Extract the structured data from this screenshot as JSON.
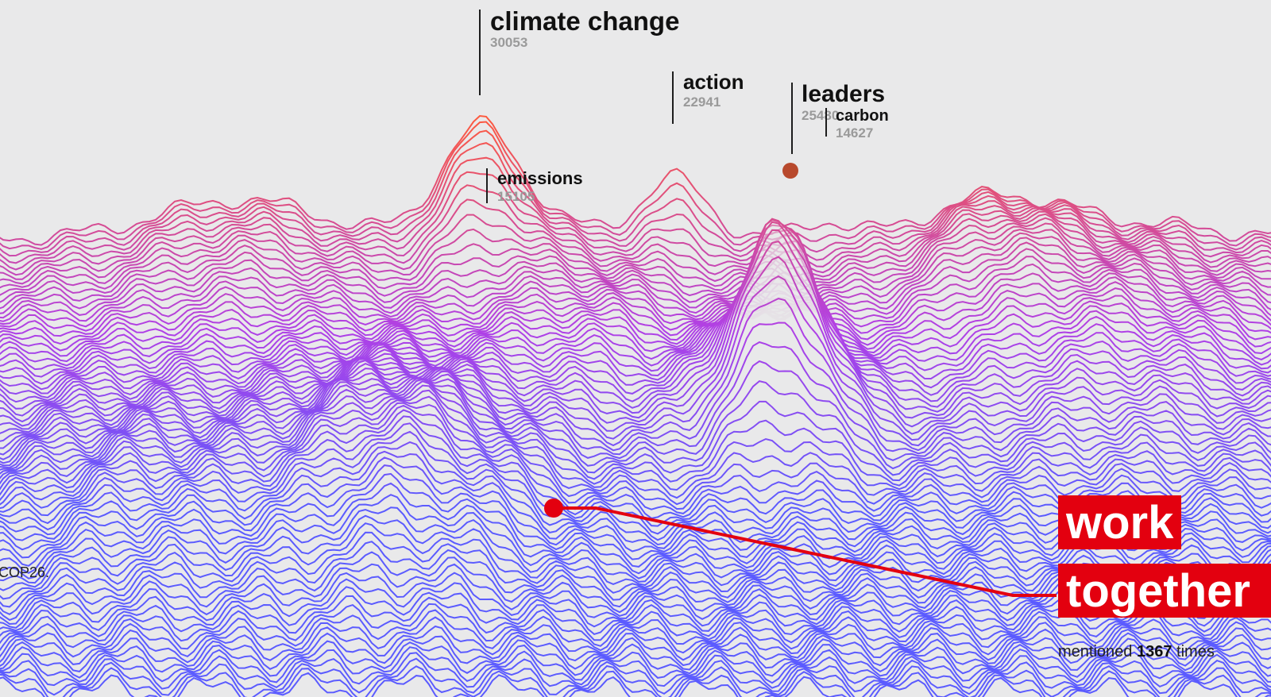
{
  "chart_data": {
    "type": "terrain",
    "peaks": [
      {
        "term": "climate change",
        "count": "30053"
      },
      {
        "term": "action",
        "count": "22941"
      },
      {
        "term": "leaders",
        "count": "25480"
      },
      {
        "term": "carbon",
        "count": "14627"
      },
      {
        "term": "emissions",
        "count": "15105"
      }
    ],
    "highlight": {
      "term_line1": "work",
      "term_line2": "together",
      "mention_prefix": "mentioned",
      "mention_count": "1367",
      "mention_suffix": "times",
      "color": "#e3000f"
    },
    "left_note_line1": "COP26.",
    "left_note_line2": "",
    "colors": {
      "low": "#5b5bff",
      "mid": "#b040e6",
      "high": "#ff5a3a"
    }
  }
}
